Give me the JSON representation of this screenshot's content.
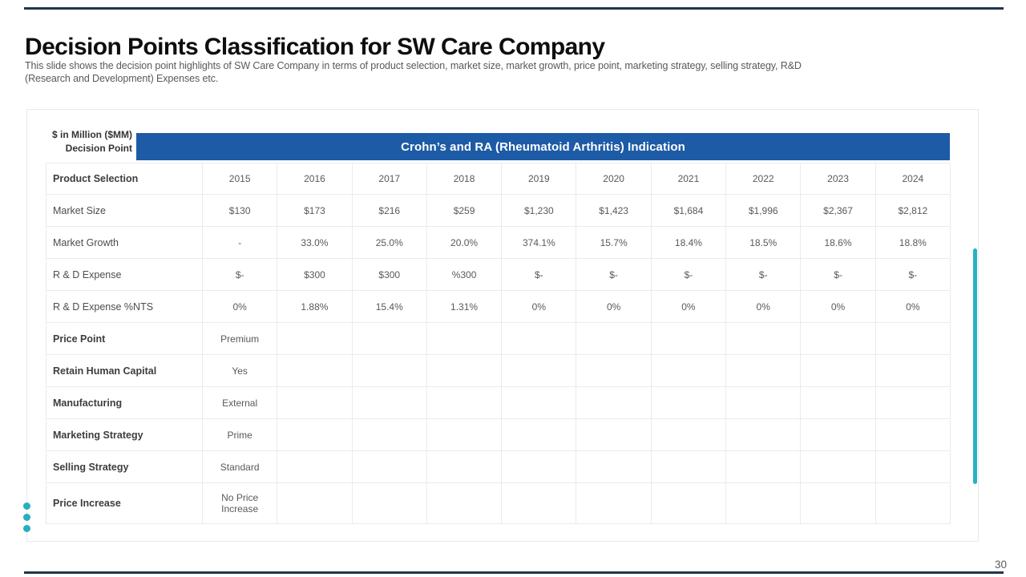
{
  "slide": {
    "title": "Decision Points Classification for SW Care Company",
    "subtitle_line1": "This slide shows the decision point highlights of SW Care Company in terms of product selection, market size, market growth, price point, marketing strategy, selling strategy, R&D",
    "subtitle_line2": "(Research and Development) Expenses etc.",
    "page_number": "30"
  },
  "colors": {
    "banner_blue": "#1d5ba6",
    "accent_teal": "#27b2c3",
    "accent_navy": "#22344d"
  },
  "table": {
    "corner_line1": "$ in Million ($MM)",
    "corner_line2": "Decision Point",
    "banner": "Crohn’s and RA (Rheumatoid Arthritis) Indication",
    "years_row_label": "Product Selection",
    "years": [
      "2015",
      "2016",
      "2017",
      "2018",
      "2019",
      "2020",
      "2021",
      "2022",
      "2023",
      "2024"
    ],
    "rows": [
      {
        "label": "Market Size",
        "bold": false,
        "values": [
          "$130",
          "$173",
          "$216",
          "$259",
          "$1,230",
          "$1,423",
          "$1,684",
          "$1,996",
          "$2,367",
          "$2,812"
        ]
      },
      {
        "label": "Market Growth",
        "bold": false,
        "values": [
          "-",
          "33.0%",
          "25.0%",
          "20.0%",
          "374.1%",
          "15.7%",
          "18.4%",
          "18.5%",
          "18.6%",
          "18.8%"
        ]
      },
      {
        "label": "R & D Expense",
        "bold": false,
        "values": [
          "$-",
          "$300",
          "$300",
          "%300",
          "$-",
          "$-",
          "$-",
          "$-",
          "$-",
          "$-"
        ]
      },
      {
        "label": "R & D Expense %NTS",
        "bold": false,
        "values": [
          "0%",
          "1.88%",
          "15.4%",
          "1.31%",
          "0%",
          "0%",
          "0%",
          "0%",
          "0%",
          "0%"
        ]
      },
      {
        "label": "Price Point",
        "bold": true,
        "values": [
          "Premium",
          "",
          "",
          "",
          "",
          "",
          "",
          "",
          "",
          ""
        ]
      },
      {
        "label": "Retain Human Capital",
        "bold": true,
        "values": [
          "Yes",
          "",
          "",
          "",
          "",
          "",
          "",
          "",
          "",
          ""
        ]
      },
      {
        "label": "Manufacturing",
        "bold": true,
        "values": [
          "External",
          "",
          "",
          "",
          "",
          "",
          "",
          "",
          "",
          ""
        ]
      },
      {
        "label": "Marketing Strategy",
        "bold": true,
        "values": [
          "Prime",
          "",
          "",
          "",
          "",
          "",
          "",
          "",
          "",
          ""
        ]
      },
      {
        "label": "Selling Strategy",
        "bold": true,
        "values": [
          "Standard",
          "",
          "",
          "",
          "",
          "",
          "",
          "",
          "",
          ""
        ]
      },
      {
        "label": "Price Increase",
        "bold": true,
        "tall": true,
        "values": [
          "No Price Increase",
          "",
          "",
          "",
          "",
          "",
          "",
          "",
          "",
          ""
        ]
      }
    ]
  }
}
